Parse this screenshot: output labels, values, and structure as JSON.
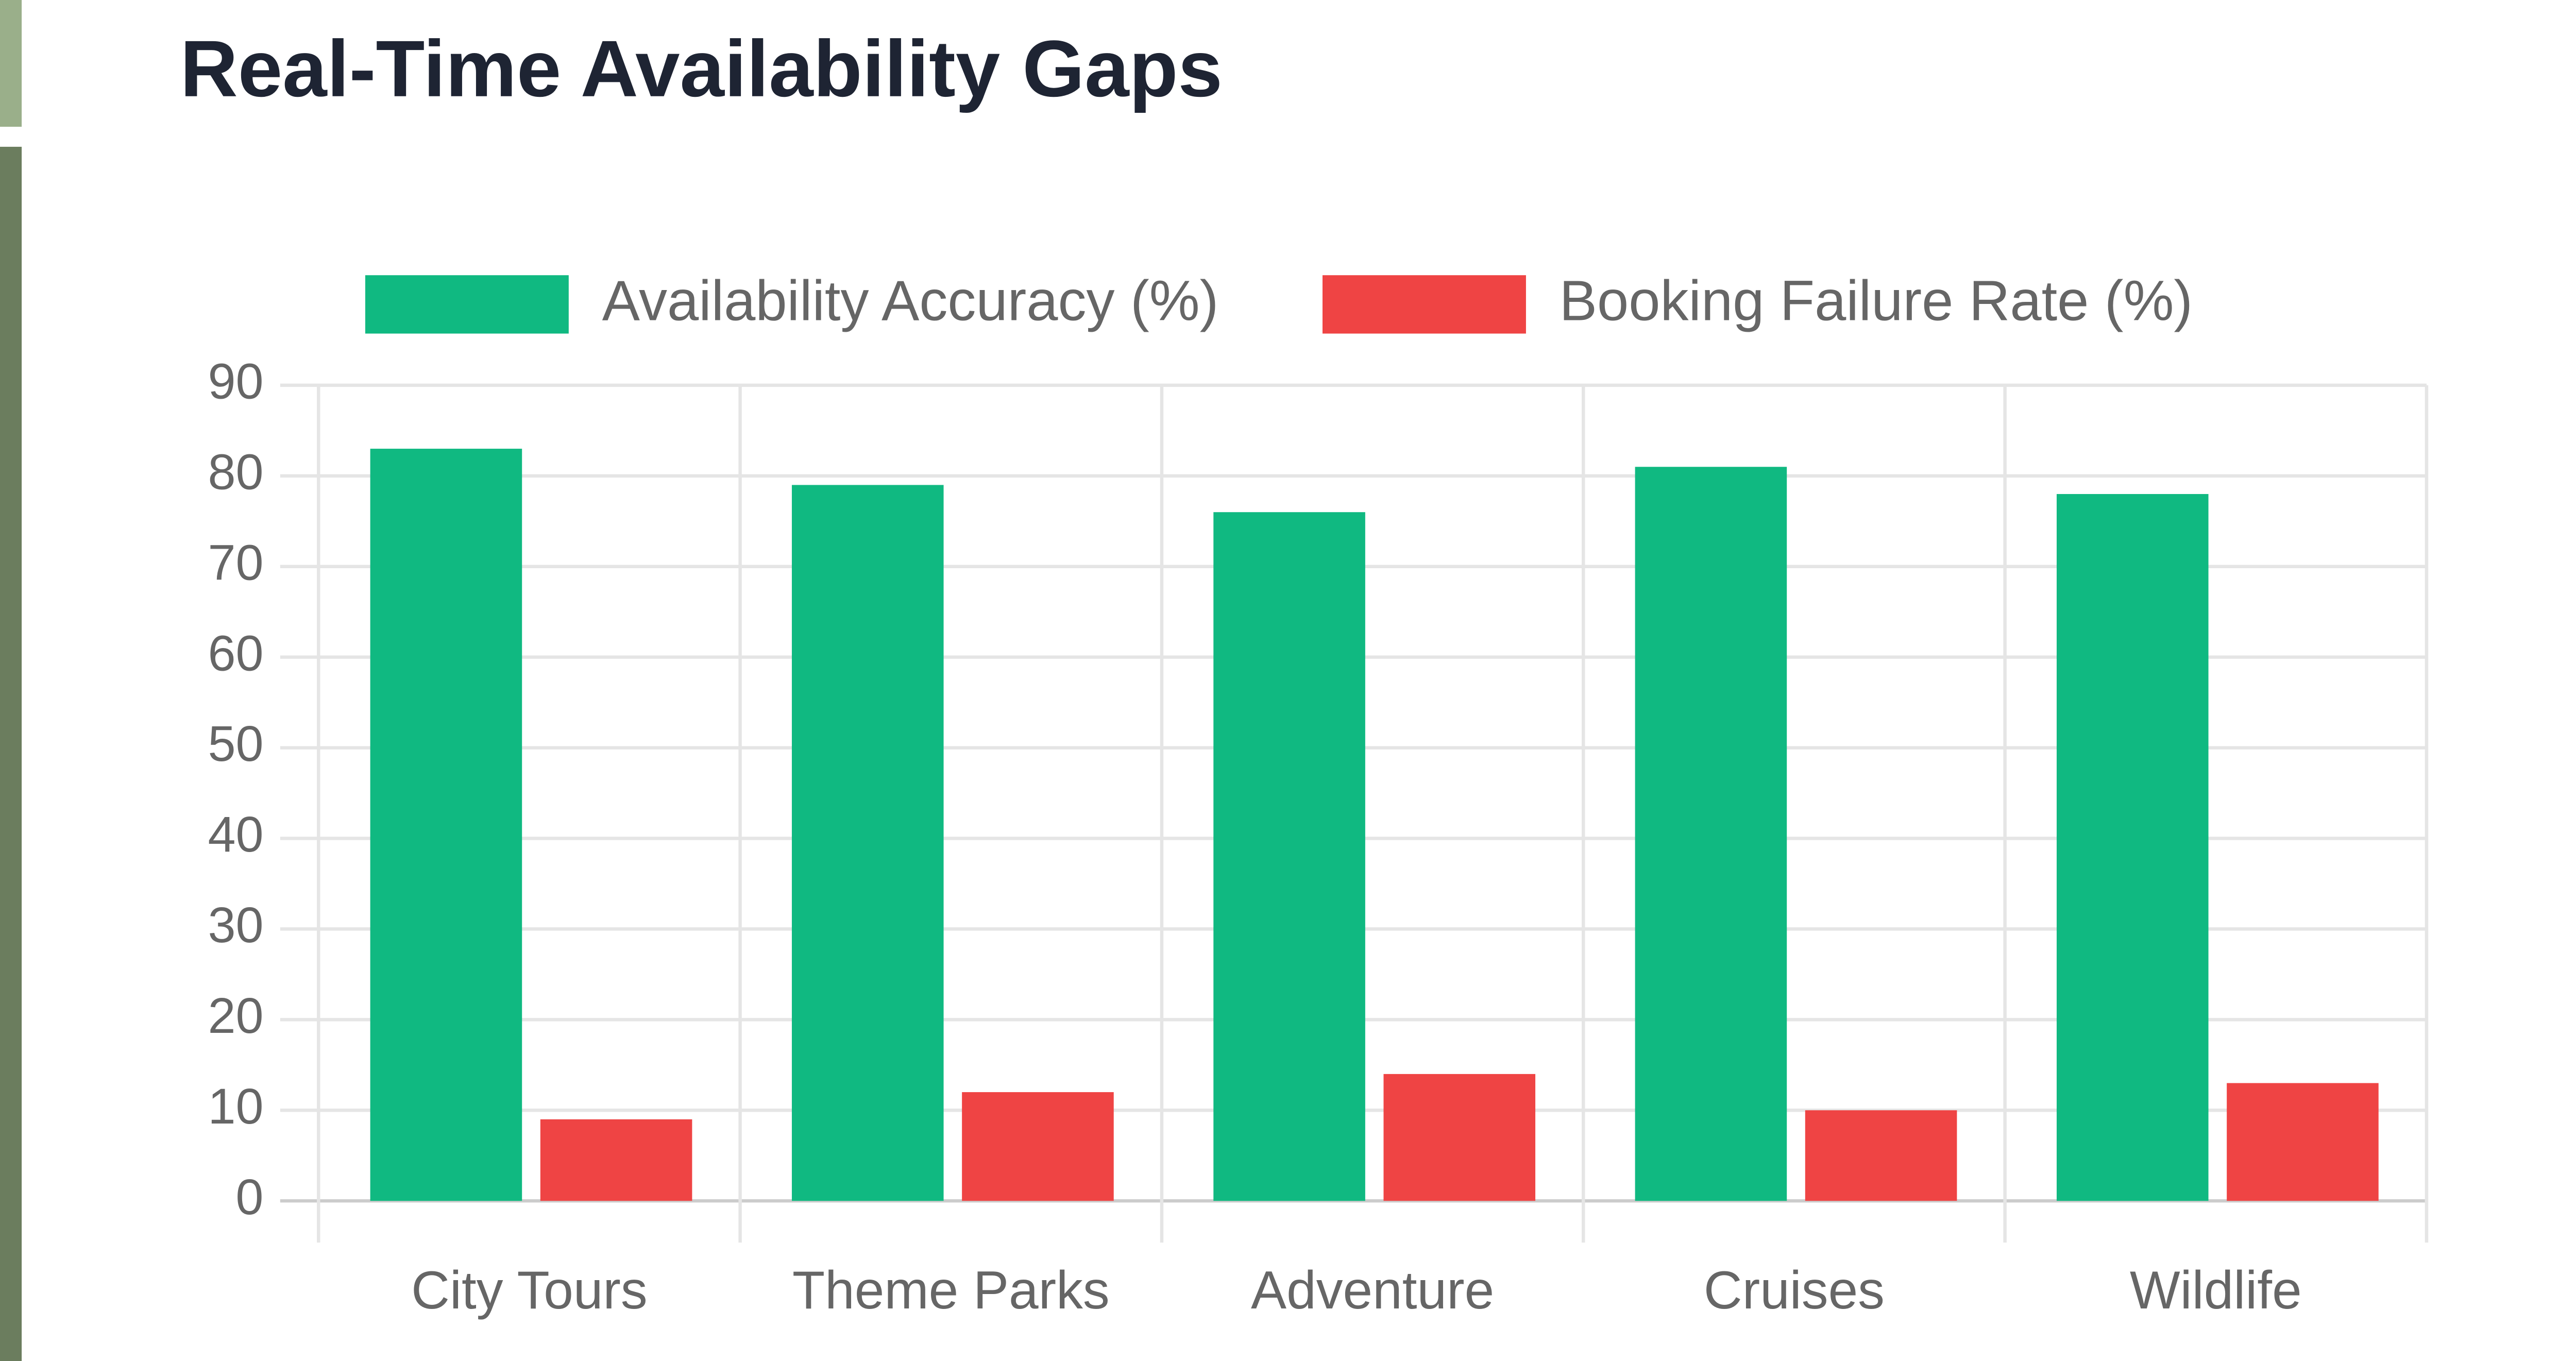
{
  "chart_data": {
    "type": "bar",
    "title": "Real-Time Availability Gaps",
    "categories": [
      "City Tours",
      "Theme Parks",
      "Adventure",
      "Cruises",
      "Wildlife"
    ],
    "series": [
      {
        "name": "Availability Accuracy (%)",
        "color": "#10b981",
        "values": [
          83,
          79,
          76,
          81,
          78
        ]
      },
      {
        "name": "Booking Failure Rate (%)",
        "color": "#ef4444",
        "values": [
          9,
          12,
          14,
          10,
          13
        ]
      }
    ],
    "ylim": [
      0,
      90
    ],
    "yticks": [
      0,
      10,
      20,
      30,
      40,
      50,
      60,
      70,
      80,
      90
    ],
    "grid": true,
    "legend": "top"
  }
}
